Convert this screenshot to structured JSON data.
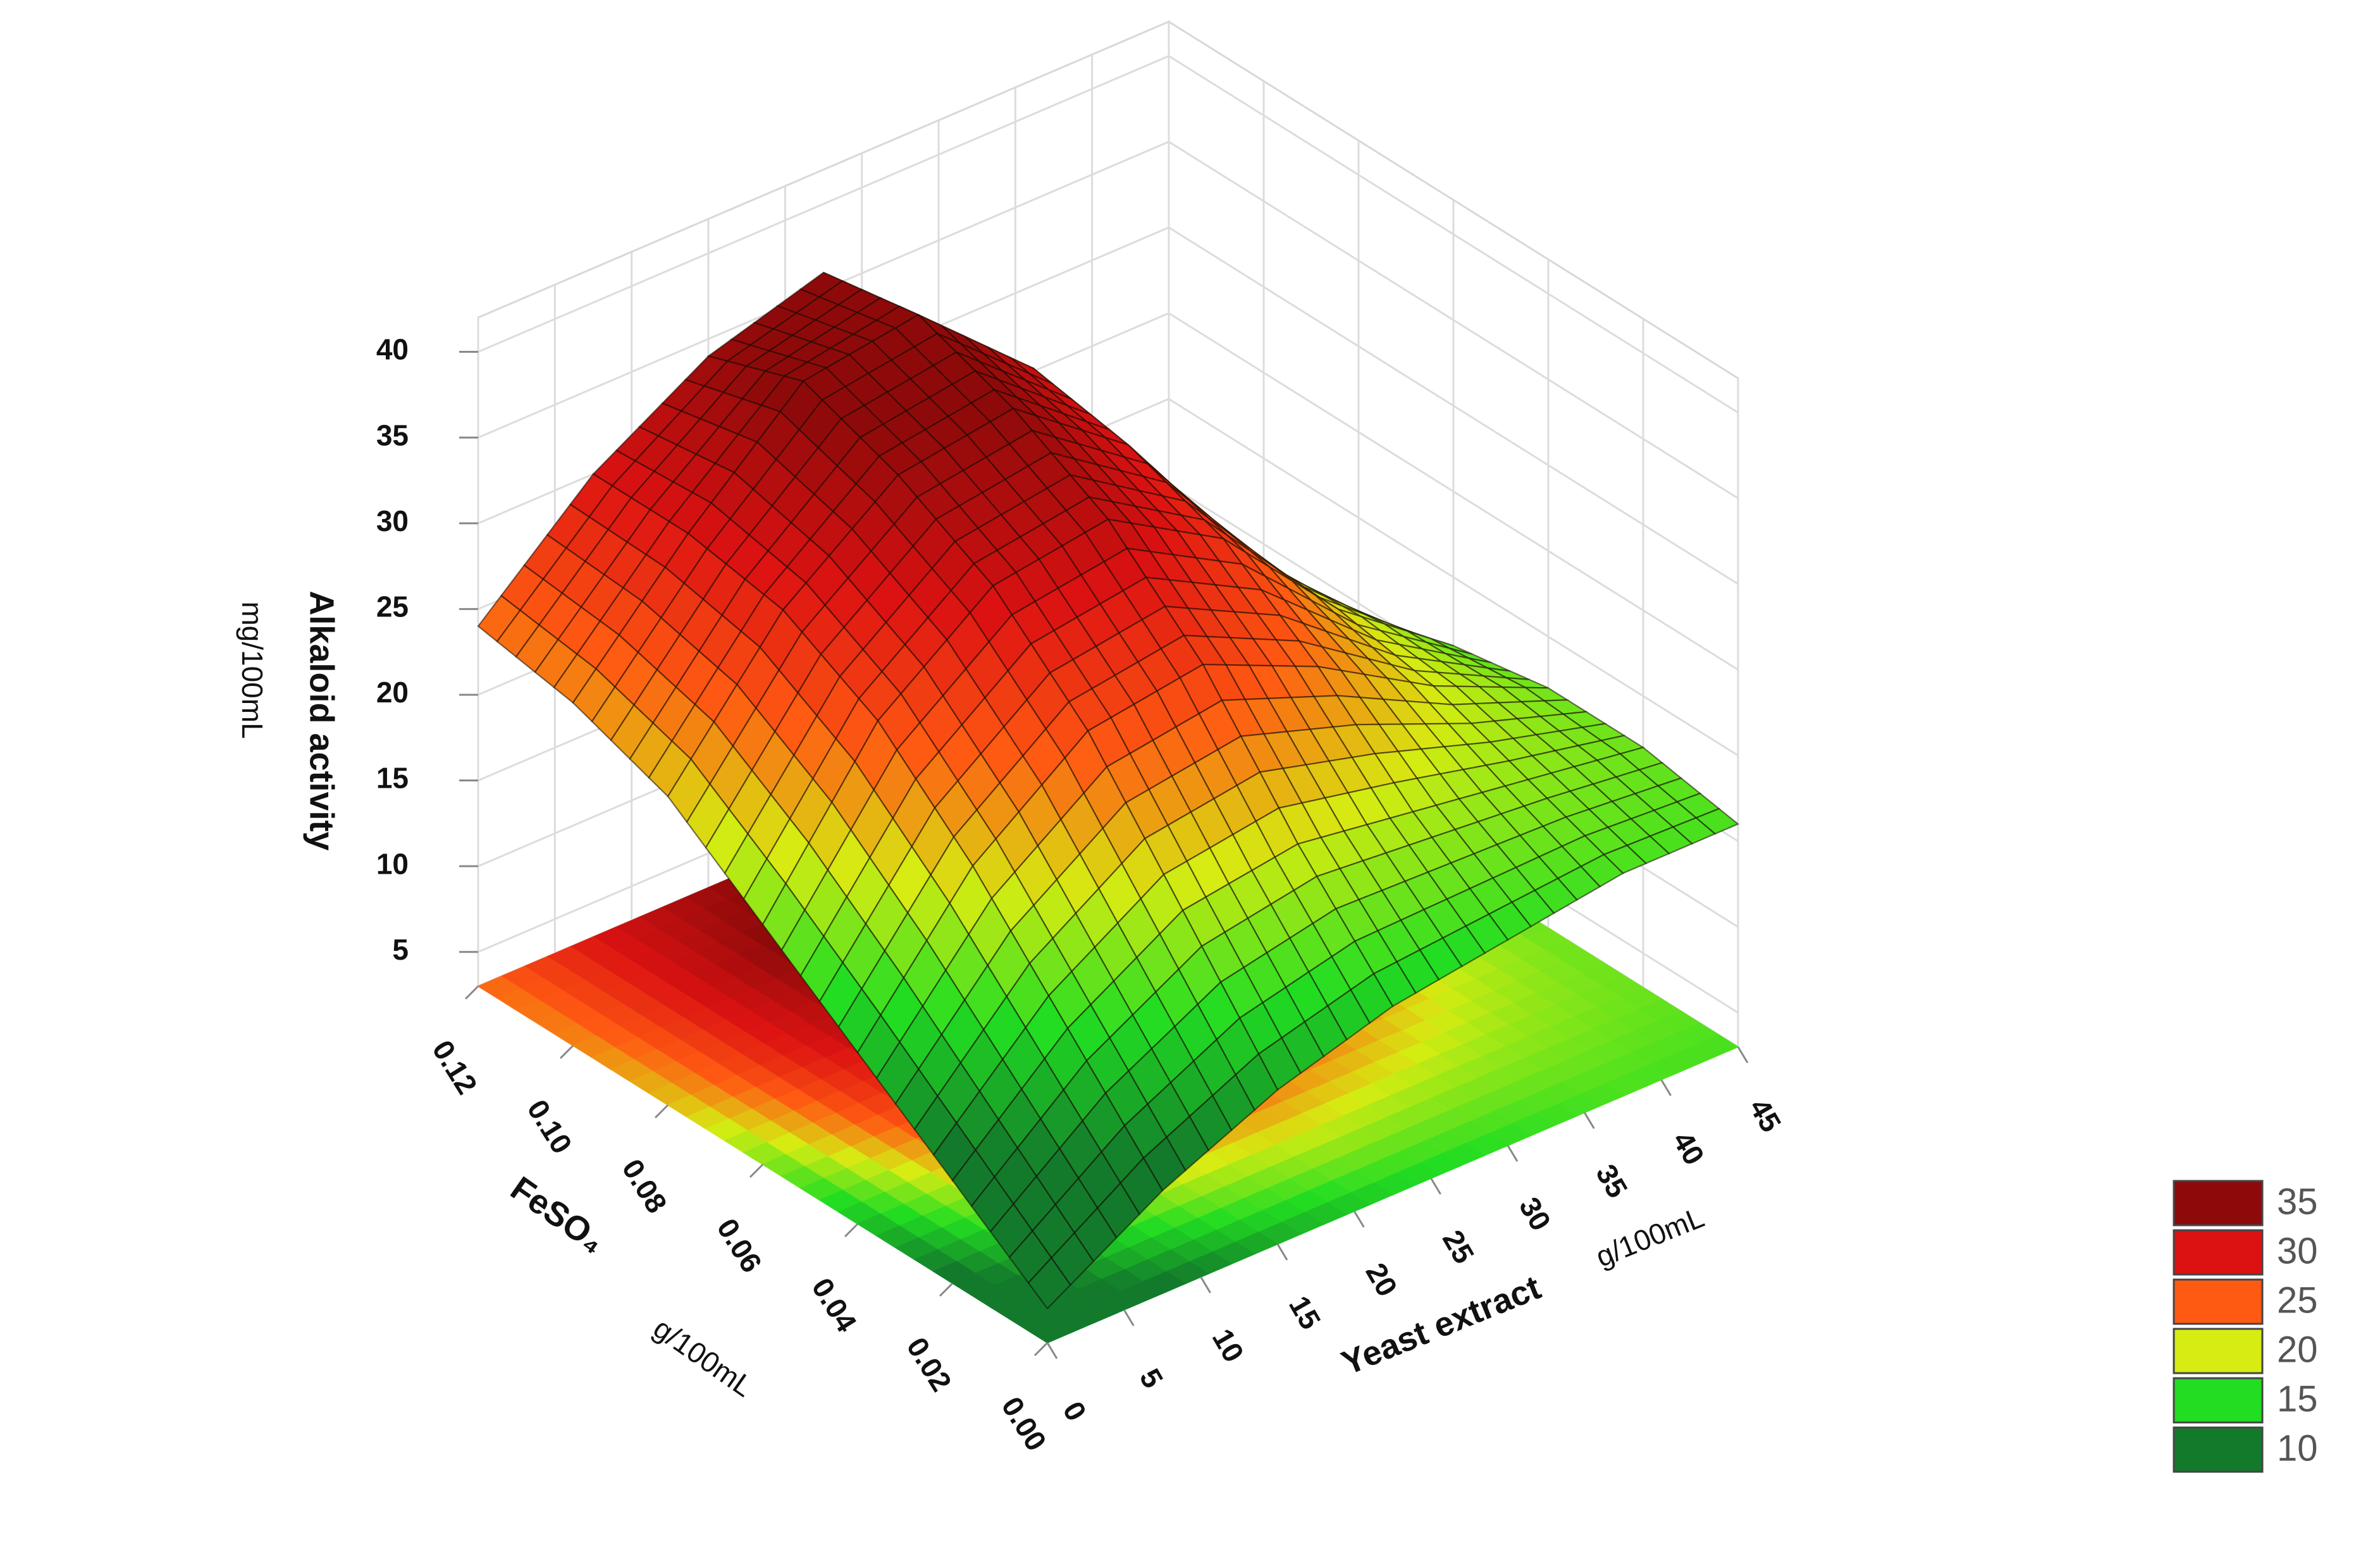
{
  "chart_data": {
    "type": "surface",
    "x_label": "Yeast extract",
    "x_unit": "g/100mL",
    "y_label": "FeSO₄",
    "y_unit": "g/100mL",
    "z_label": "Alkaloid activity",
    "z_unit": "mg/100mL",
    "x": [
      0,
      7.5,
      15,
      22.5,
      30,
      37.5,
      45
    ],
    "y": [
      0,
      0.02,
      0.04,
      0.06,
      0.08,
      0.1,
      0.12
    ],
    "z": [
      [
        5,
        9,
        12,
        14,
        15,
        16,
        16
      ],
      [
        9,
        15,
        19,
        20,
        19,
        18,
        17
      ],
      [
        13,
        21,
        26,
        27,
        24,
        20,
        17
      ],
      [
        17,
        26,
        31,
        32,
        28,
        21,
        16
      ],
      [
        21,
        29,
        34,
        35,
        30,
        21,
        14
      ],
      [
        23,
        30,
        36,
        37,
        31,
        20,
        11
      ],
      [
        24,
        30,
        34,
        36,
        29,
        17,
        8
      ]
    ],
    "xlim": [
      0,
      45
    ],
    "ylim": [
      0,
      0.12
    ],
    "zlim": [
      3,
      42
    ],
    "xticks": [
      0,
      5,
      10,
      15,
      20,
      25,
      30,
      35,
      40,
      45
    ],
    "yticks": [
      {
        "value": 0,
        "label": "0.00"
      },
      {
        "value": 0.02,
        "label": "0.02"
      },
      {
        "value": 0.04,
        "label": "0.04"
      },
      {
        "value": 0.06,
        "label": "0.06"
      },
      {
        "value": 0.08,
        "label": "0.08"
      },
      {
        "value": 0.1,
        "label": "0.10"
      },
      {
        "value": 0.12,
        "label": "0.12"
      }
    ],
    "zticks": [
      5,
      10,
      15,
      20,
      25,
      30,
      35,
      40
    ],
    "grid": true,
    "legend": {
      "position": "lower right",
      "levels": [
        35,
        30,
        25,
        20,
        15,
        10
      ],
      "colors": [
        "#8e0a0a",
        "#dc1212",
        "#ff5a12",
        "#d6ec12",
        "#22dd22",
        "#137a2c"
      ]
    }
  }
}
